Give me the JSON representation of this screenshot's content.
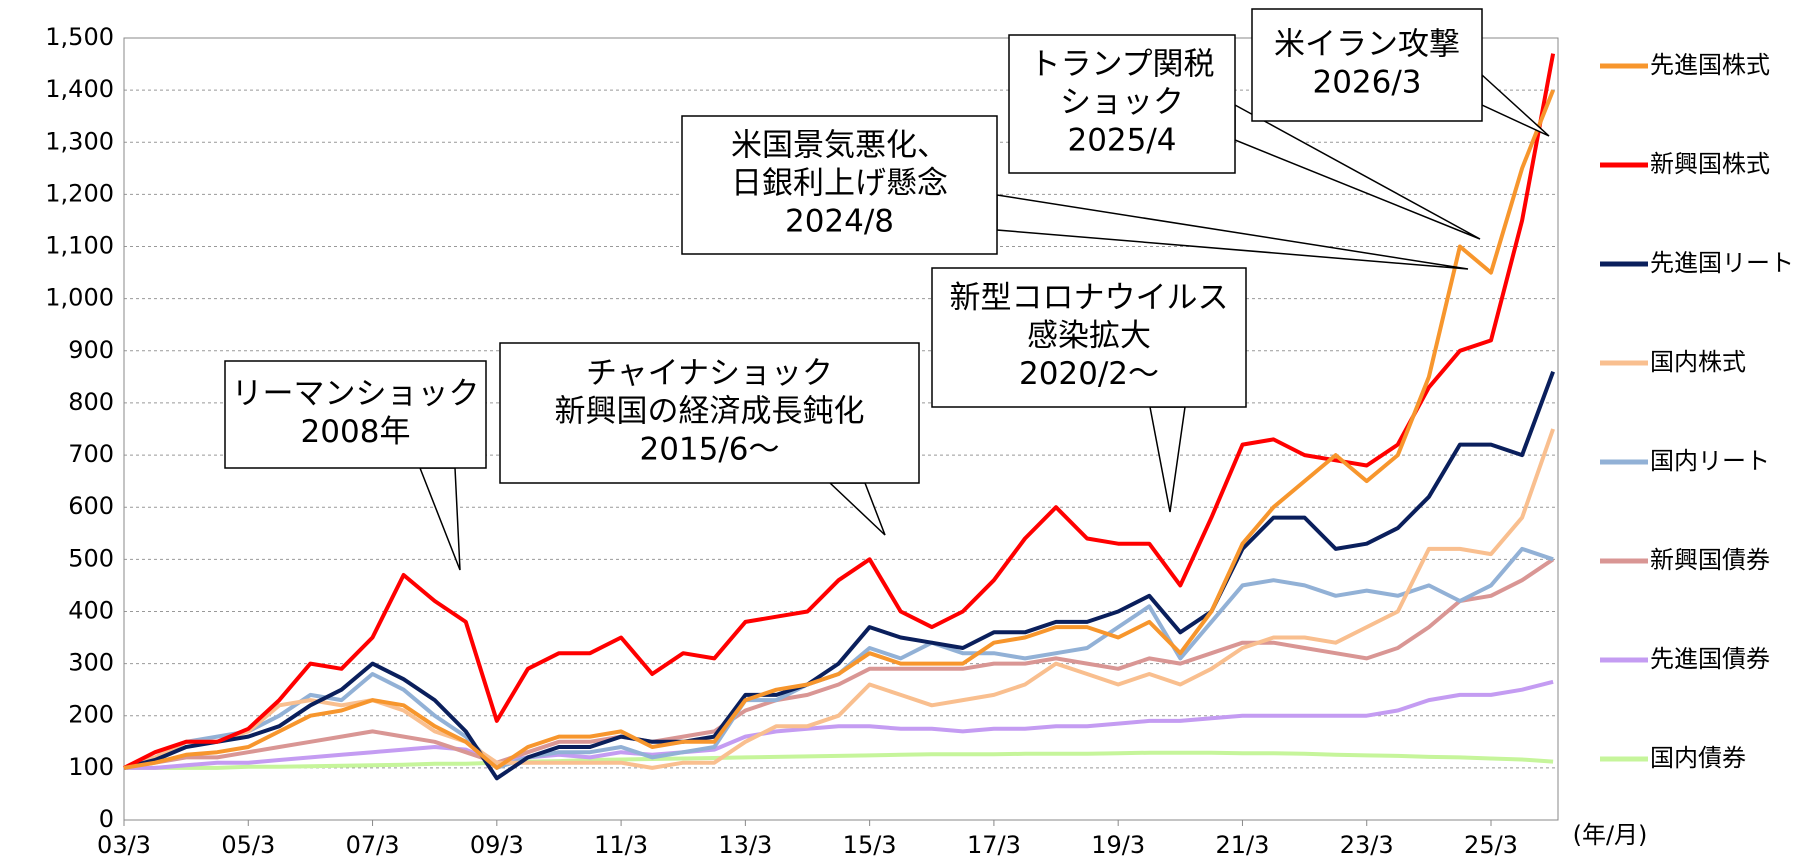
{
  "chart_data": {
    "type": "line",
    "xlabel": "(年/月)",
    "x": [
      "03/3",
      "03/9",
      "04/3",
      "04/9",
      "05/3",
      "05/9",
      "06/3",
      "06/9",
      "07/3",
      "07/9",
      "08/3",
      "08/9",
      "09/3",
      "09/9",
      "10/3",
      "10/9",
      "11/3",
      "11/9",
      "12/3",
      "12/9",
      "13/3",
      "13/9",
      "14/3",
      "14/9",
      "15/3",
      "15/9",
      "16/3",
      "16/9",
      "17/3",
      "17/9",
      "18/3",
      "18/9",
      "19/3",
      "19/9",
      "20/3",
      "20/9",
      "21/3",
      "21/9",
      "22/3",
      "22/9",
      "23/3",
      "23/9",
      "24/3",
      "24/9",
      "25/3",
      "25/9",
      "26/3"
    ],
    "xticks": [
      "03/3",
      "05/3",
      "07/3",
      "09/3",
      "11/3",
      "13/3",
      "15/3",
      "17/3",
      "19/3",
      "21/3",
      "23/3",
      "25/3"
    ],
    "ylim": [
      0,
      1500
    ],
    "yticks": [
      0,
      100,
      200,
      300,
      400,
      500,
      600,
      700,
      800,
      900,
      {
        "value": 1000,
        "label": "1,000"
      },
      {
        "value": 1100,
        "label": "1,100"
      },
      {
        "value": 1200,
        "label": "1,200"
      },
      {
        "value": 1300,
        "label": "1,300"
      },
      {
        "value": 1400,
        "label": "1,400"
      },
      {
        "value": 1500,
        "label": "1,500"
      }
    ],
    "grid": true,
    "legend": "right",
    "series": [
      {
        "name": "先進国株式",
        "color": "#f7962d",
        "values": [
          100,
          110,
          125,
          130,
          140,
          170,
          200,
          210,
          230,
          220,
          180,
          150,
          100,
          140,
          160,
          160,
          170,
          140,
          150,
          150,
          230,
          250,
          260,
          280,
          320,
          300,
          300,
          300,
          340,
          350,
          370,
          370,
          350,
          380,
          320,
          400,
          530,
          600,
          650,
          700,
          650,
          700,
          850,
          1100,
          1050,
          1250,
          1400
        ]
      },
      {
        "name": "新興国株式",
        "color": "#ff0000",
        "values": [
          100,
          130,
          150,
          150,
          175,
          230,
          300,
          290,
          350,
          470,
          420,
          380,
          190,
          290,
          320,
          320,
          350,
          280,
          320,
          310,
          380,
          390,
          400,
          460,
          500,
          400,
          370,
          400,
          460,
          540,
          600,
          540,
          530,
          530,
          450,
          580,
          720,
          730,
          700,
          690,
          680,
          720,
          830,
          900,
          920,
          1150,
          1470
        ]
      },
      {
        "name": "先進国リート",
        "color": "#0a1f5c",
        "values": [
          100,
          115,
          140,
          150,
          160,
          180,
          220,
          250,
          300,
          270,
          230,
          170,
          80,
          120,
          140,
          140,
          160,
          150,
          150,
          160,
          240,
          240,
          260,
          300,
          370,
          350,
          340,
          330,
          360,
          360,
          380,
          380,
          400,
          430,
          360,
          400,
          520,
          580,
          580,
          520,
          530,
          560,
          620,
          720,
          720,
          700,
          860
        ]
      },
      {
        "name": "国内株式",
        "color": "#f9bf8f",
        "values": [
          100,
          120,
          150,
          150,
          170,
          220,
          230,
          220,
          230,
          210,
          170,
          150,
          110,
          110,
          110,
          110,
          110,
          100,
          110,
          110,
          150,
          180,
          180,
          200,
          260,
          240,
          220,
          230,
          240,
          260,
          300,
          280,
          260,
          280,
          260,
          290,
          330,
          350,
          350,
          340,
          370,
          400,
          520,
          520,
          510,
          580,
          750
        ]
      },
      {
        "name": "国内リート",
        "color": "#92b1d6",
        "values": [
          100,
          120,
          150,
          160,
          170,
          200,
          240,
          230,
          280,
          250,
          200,
          160,
          100,
          120,
          130,
          130,
          140,
          120,
          130,
          140,
          230,
          230,
          260,
          280,
          330,
          310,
          340,
          320,
          320,
          310,
          320,
          330,
          370,
          410,
          310,
          380,
          450,
          460,
          450,
          430,
          440,
          430,
          450,
          420,
          450,
          520,
          500
        ]
      },
      {
        "name": "新興国債券",
        "color": "#d99694",
        "values": [
          100,
          110,
          120,
          120,
          130,
          140,
          150,
          160,
          170,
          160,
          150,
          130,
          110,
          130,
          150,
          150,
          160,
          150,
          160,
          170,
          210,
          230,
          240,
          260,
          290,
          290,
          290,
          290,
          300,
          300,
          310,
          300,
          290,
          310,
          300,
          320,
          340,
          340,
          330,
          320,
          310,
          330,
          370,
          420,
          430,
          460,
          500
        ]
      },
      {
        "name": "先進国債券",
        "color": "#c49cf2",
        "values": [
          100,
          100,
          105,
          110,
          110,
          115,
          120,
          125,
          130,
          135,
          140,
          135,
          110,
          120,
          125,
          120,
          130,
          125,
          130,
          135,
          160,
          170,
          175,
          180,
          180,
          175,
          175,
          170,
          175,
          175,
          180,
          180,
          185,
          190,
          190,
          195,
          200,
          200,
          200,
          200,
          200,
          210,
          230,
          240,
          240,
          250,
          265
        ]
      },
      {
        "name": "国内債券",
        "color": "#c6f59b",
        "values": [
          100,
          100,
          100,
          100,
          102,
          102,
          103,
          104,
          105,
          106,
          108,
          108,
          110,
          112,
          113,
          115,
          116,
          117,
          118,
          119,
          120,
          121,
          122,
          123,
          124,
          125,
          126,
          126,
          126,
          127,
          127,
          127,
          128,
          129,
          129,
          129,
          128,
          128,
          127,
          125,
          124,
          123,
          121,
          120,
          118,
          116,
          112
        ]
      }
    ],
    "annotations": [
      {
        "text": [
          "リーマンショック",
          "2008年"
        ]
      },
      {
        "text": [
          "チャイナショック",
          "新興国の経済成長鈍化",
          "2015/6〜"
        ]
      },
      {
        "text": [
          "新型コロナウイルス",
          "感染拡大",
          "2020/2〜"
        ]
      },
      {
        "text": [
          "米国景気悪化、",
          "日銀利上げ懸念",
          "2024/8"
        ]
      },
      {
        "text": [
          "トランプ関税",
          "ショック",
          "2025/4"
        ]
      },
      {
        "text": [
          "米イラン攻撃",
          "2026/3"
        ]
      }
    ]
  }
}
